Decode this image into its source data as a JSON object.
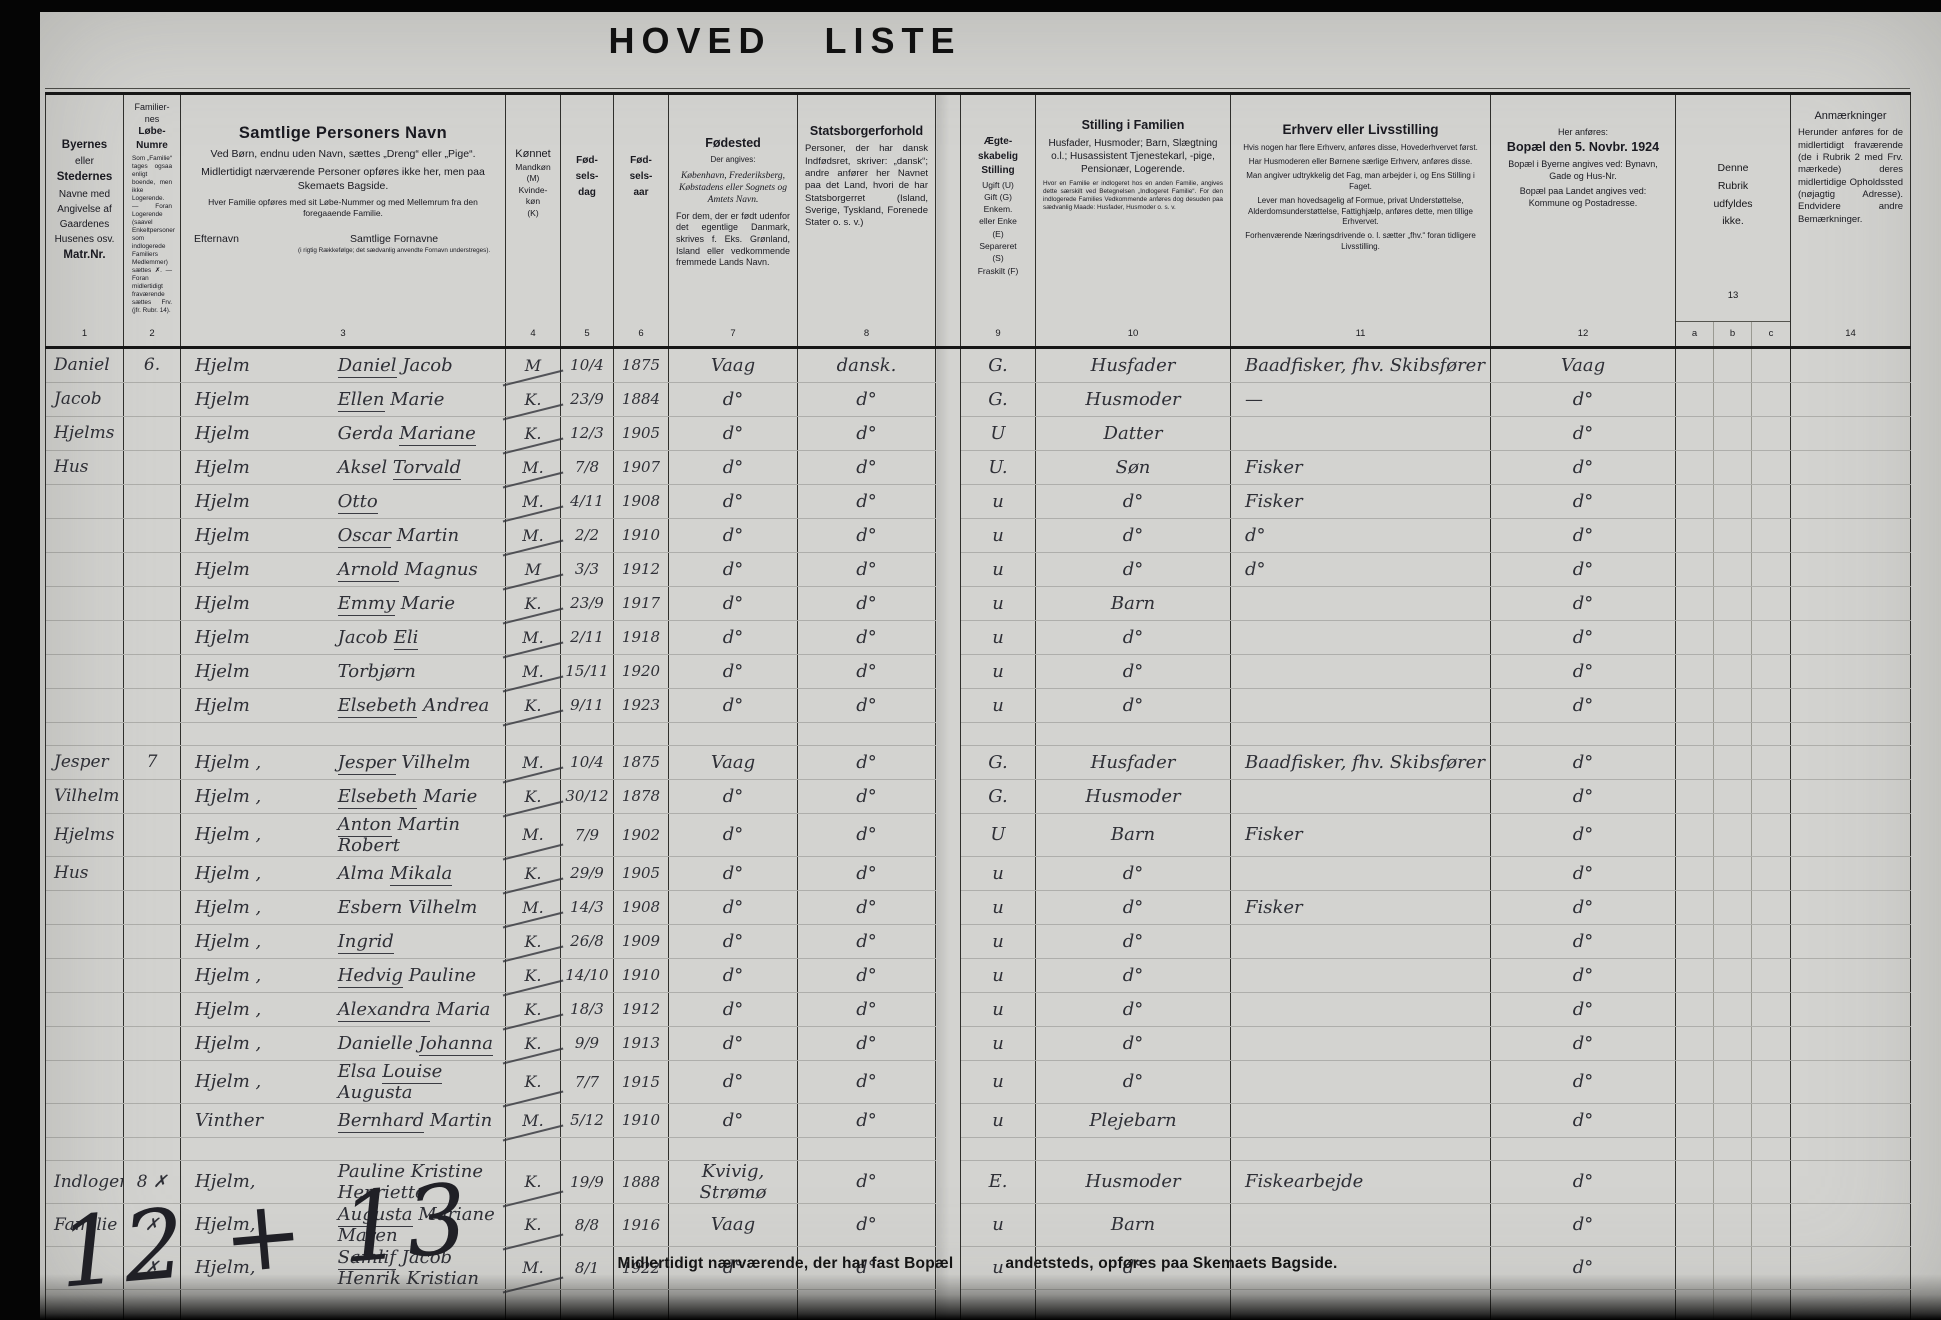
{
  "title": "HOVED LISTE",
  "bottom": {
    "note_left": "Midlertidigt nærværende, der har fast Bopæl",
    "note_right": "andetsteds, opføres paa Skemaets Bagside.",
    "handwriting": "12 + 13"
  },
  "colnums": {
    "n1": "1",
    "n2": "2",
    "n3": "3",
    "n4": "4",
    "n5": "5",
    "n6": "6",
    "n7": "7",
    "n8": "8",
    "n9": "9",
    "n10": "10",
    "n11": "11",
    "n12": "12",
    "n13": "13",
    "a": "a",
    "b": "b",
    "c": "c",
    "n14": "14"
  },
  "header": {
    "c1": {
      "l1": "Byernes",
      "l2": "eller",
      "l3": "Stedernes",
      "l4": "Navne med",
      "l5": "Angivelse af",
      "l6": "Gaardenes",
      "l7": "Husenes osv.",
      "l8": "Matr.Nr."
    },
    "c2": {
      "t1": "Familier-",
      "t2": "nes",
      "t3": "Løbe-",
      "t4": "Numre",
      "note": "Som „Familie“ tages ogsaa enligt boende, men ikke Logerende. — Foran Logerende (saavel Enkeltpersoner som indlogerede Familiers Medlemmer) sættes ✗. — Foran midlertidigt fraværende sættes Frv. (jfr. Rubr. 14)."
    },
    "c3": {
      "title": "Samtlige Personers Navn",
      "p1": "Ved Børn, endnu uden Navn, sættes „Dreng“ eller „Pige“.",
      "p2": "Midlertidigt nærværende Personer opføres ikke her, men paa Skemaets Bagside.",
      "p3": "Hver Familie opføres med sit Løbe-Nummer og med Mellemrum fra den foregaaende Familie.",
      "sub_left": "Efternavn",
      "sub_right": "Samtlige Fornavne",
      "sub_right_note": "(i rigtig Rækkefølge; det sædvanlig anvendte Fornavn understreges)."
    },
    "c4": {
      "title": "Kønnet",
      "l1": "Mandkøn",
      "l2": "(M)",
      "l3": "Kvinde-",
      "l4": "køn",
      "l5": "(K)"
    },
    "c5": {
      "l1": "Fød-",
      "l2": "sels-",
      "l3": "dag"
    },
    "c6": {
      "l1": "Fød-",
      "l2": "sels-",
      "l3": "aar"
    },
    "c7": {
      "title": "Fødested",
      "p1": "Der angives:",
      "p2": "København, Frederiksberg, Købstadens eller Sognets og Amtets Navn.",
      "p3": "For dem, der er født udenfor det egentlige Danmark, skrives f. Eks. Grønland, Island eller vedkommende fremmede Lands Navn."
    },
    "c8": {
      "title": "Statsborgerforhold",
      "p1": "Personer, der har dansk Indfødsret, skriver: „dansk“; andre anfører her Navnet paa det Land, hvori de har Statsborgerret (Island, Sverige, Tyskland, Forenede Stater o. s. v.)"
    },
    "c9": {
      "t1": "Ægte-",
      "t2": "skabelig",
      "t3": "Stilling",
      "l1": "Ugift (U)",
      "l2": "Gift (G)",
      "l3": "Enkem.",
      "l4": "eller Enke",
      "l5": "(E)",
      "l6": "Separeret",
      "l7": "(S)",
      "l8": "Fraskilt (F)"
    },
    "c10": {
      "title": "Stilling i Familien",
      "p1": "Husfader, Husmoder; Barn, Slægtning o.l.; Husassistent Tjenestekarl, -pige, Pensionær, Logerende.",
      "p2": "Hvor en Familie er indlogeret hos en anden Familie, angives dette særskilt ved Betegnelsen „Indlogeret Familie“. For den indlogerede Families Vedkommende anføres dog desuden paa sædvanlig Maade: Husfader, Husmoder o. s. v."
    },
    "c11": {
      "title": "Erhverv eller Livsstilling",
      "p1": "Hvis nogen har flere Erhverv, anføres disse, Hovederhvervet først.",
      "p2": "Har Husmoderen eller Børnene særlige Erhverv, anføres disse.",
      "p3": "Man angiver udtrykkelig det Fag, man arbejder i, og Ens Stilling i Faget.",
      "p4": "Lever man hovedsagelig af Formue, privat Understøttelse, Alderdomsunderstøttelse, Fattighjælp, anføres dette, men tillige Erhvervet.",
      "p5": "Forhenværende Næringsdrivende o. l. sætter „fhv.“ foran tidligere Livsstilling."
    },
    "c12": {
      "pre": "Her anføres:",
      "title": "Bopæl den 5. Novbr. 1924",
      "p1": "Bopæl i Byerne angives ved: Bynavn, Gade og Hus-Nr.",
      "p2": "Bopæl paa Landet angives ved: Kommune og Postadresse."
    },
    "c13": {
      "l1": "Denne",
      "l2": "Rubrik",
      "l3": "udfyldes",
      "l4": "ikke."
    },
    "c14": {
      "title": "Anmærkninger",
      "p1": "Herunder anføres for de midlertidigt fraværende (de i Rubrik 2 med Frv. mærkede) deres midlertidige Opholdssted (nøjagtig Adresse). Endvidere andre Bemærkninger."
    }
  },
  "families": [
    {
      "place_lines": [
        "Daniel",
        "Jacob",
        "Hjelms",
        "Hus"
      ],
      "rows": [
        {
          "num": "6.",
          "surname": "Hjelm",
          "given": "Daniel Jacob",
          "u": "Daniel",
          "sex": "M",
          "day": "10/4",
          "year": "1875",
          "birthplace": "Vaag",
          "citizen": "dansk.",
          "marital": "G.",
          "position": "Husfader",
          "occupation": "Baadfisker, fhv. Skibsfører",
          "residence": "Vaag"
        },
        {
          "num": "",
          "surname": "Hjelm",
          "given": "Ellen Marie",
          "u": "Ellen",
          "sex": "K.",
          "day": "23/9",
          "year": "1884",
          "birthplace": "d°",
          "citizen": "d°",
          "marital": "G.",
          "position": "Husmoder",
          "occupation": "—",
          "residence": "d°"
        },
        {
          "num": "",
          "surname": "Hjelm",
          "given": "Gerda Mariane",
          "u": "Mariane",
          "sex": "K.",
          "day": "12/3",
          "year": "1905",
          "birthplace": "d°",
          "citizen": "d°",
          "marital": "U",
          "position": "Datter",
          "occupation": "",
          "residence": "d°"
        },
        {
          "num": "",
          "surname": "Hjelm",
          "given": "Aksel Torvald",
          "u": "Torvald",
          "sex": "M.",
          "day": "7/8",
          "year": "1907",
          "birthplace": "d°",
          "citizen": "d°",
          "marital": "U.",
          "position": "Søn",
          "occupation": "Fisker",
          "residence": "d°"
        },
        {
          "num": "",
          "surname": "Hjelm",
          "given": "Otto",
          "u": "Otto",
          "sex": "M.",
          "day": "4/11",
          "year": "1908",
          "birthplace": "d°",
          "citizen": "d°",
          "marital": "u",
          "position": "d°",
          "occupation": "Fisker",
          "residence": "d°"
        },
        {
          "num": "",
          "surname": "Hjelm",
          "given": "Oscar Martin",
          "u": "Oscar",
          "sex": "M.",
          "day": "2/2",
          "year": "1910",
          "birthplace": "d°",
          "citizen": "d°",
          "marital": "u",
          "position": "d°",
          "occupation": "d°",
          "residence": "d°"
        },
        {
          "num": "",
          "surname": "Hjelm",
          "given": "Arnold Magnus",
          "u": "Arnold",
          "sex": "M",
          "day": "3/3",
          "year": "1912",
          "birthplace": "d°",
          "citizen": "d°",
          "marital": "u",
          "position": "d°",
          "occupation": "d°",
          "residence": "d°"
        },
        {
          "num": "",
          "surname": "Hjelm",
          "given": "Emmy Marie",
          "u": "Emmy",
          "sex": "K.",
          "day": "23/9",
          "year": "1917",
          "birthplace": "d°",
          "citizen": "d°",
          "marital": "u",
          "position": "Barn",
          "occupation": "",
          "residence": "d°"
        },
        {
          "num": "",
          "surname": "Hjelm",
          "given": "Jacob Eli",
          "u": "Eli",
          "sex": "M.",
          "day": "2/11",
          "year": "1918",
          "birthplace": "d°",
          "citizen": "d°",
          "marital": "u",
          "position": "d°",
          "occupation": "",
          "residence": "d°"
        },
        {
          "num": "",
          "surname": "Hjelm",
          "given": "Torbjørn",
          "u": "",
          "sex": "M.",
          "day": "15/11",
          "year": "1920",
          "birthplace": "d°",
          "citizen": "d°",
          "marital": "u",
          "position": "d°",
          "occupation": "",
          "residence": "d°"
        },
        {
          "num": "",
          "surname": "Hjelm",
          "given": "Elsebeth Andrea",
          "u": "Elsebeth",
          "sex": "K.",
          "day": "9/11",
          "year": "1923",
          "birthplace": "d°",
          "citizen": "d°",
          "marital": "u",
          "position": "d°",
          "occupation": "",
          "residence": "d°"
        }
      ]
    },
    {
      "place_lines": [
        "Jesper",
        "Vilhelm",
        "Hjelms",
        "Hus"
      ],
      "rows": [
        {
          "num": "7",
          "surname": "Hjelm ,",
          "given": "Jesper Vilhelm",
          "u": "Jesper",
          "sex": "M.",
          "day": "10/4",
          "year": "1875",
          "birthplace": "Vaag",
          "citizen": "d°",
          "marital": "G.",
          "position": "Husfader",
          "occupation": "Baadfisker, fhv. Skibsfører",
          "residence": "d°"
        },
        {
          "num": "",
          "surname": "Hjelm ,",
          "given": "Elsebeth Marie",
          "u": "Elsebeth",
          "sex": "K.",
          "day": "30/12",
          "year": "1878",
          "birthplace": "d°",
          "citizen": "d°",
          "marital": "G.",
          "position": "Husmoder",
          "occupation": "",
          "residence": "d°"
        },
        {
          "num": "",
          "surname": "Hjelm ,",
          "given": "Anton Martin Robert",
          "u": "Anton",
          "sex": "M.",
          "day": "7/9",
          "year": "1902",
          "birthplace": "d°",
          "citizen": "d°",
          "marital": "U",
          "position": "Barn",
          "occupation": "Fisker",
          "residence": "d°"
        },
        {
          "num": "",
          "surname": "Hjelm ,",
          "given": "Alma Mikala",
          "u": "Mikala",
          "sex": "K.",
          "day": "29/9",
          "year": "1905",
          "birthplace": "d°",
          "citizen": "d°",
          "marital": "u",
          "position": "d°",
          "occupation": "",
          "residence": "d°"
        },
        {
          "num": "",
          "surname": "Hjelm ,",
          "given": "Esbern Vilhelm",
          "u": "",
          "sex": "M.",
          "day": "14/3",
          "year": "1908",
          "birthplace": "d°",
          "citizen": "d°",
          "marital": "u",
          "position": "d°",
          "occupation": "Fisker",
          "residence": "d°"
        },
        {
          "num": "",
          "surname": "Hjelm ,",
          "given": "Ingrid",
          "u": "Ingrid",
          "sex": "K.",
          "day": "26/8",
          "year": "1909",
          "birthplace": "d°",
          "citizen": "d°",
          "marital": "u",
          "position": "d°",
          "occupation": "",
          "residence": "d°"
        },
        {
          "num": "",
          "surname": "Hjelm ,",
          "given": "Hedvig Pauline",
          "u": "Hedvig",
          "sex": "K.",
          "day": "14/10",
          "year": "1910",
          "birthplace": "d°",
          "citizen": "d°",
          "marital": "u",
          "position": "d°",
          "occupation": "",
          "residence": "d°"
        },
        {
          "num": "",
          "surname": "Hjelm ,",
          "given": "Alexandra Maria",
          "u": "Alexandra",
          "sex": "K.",
          "day": "18/3",
          "year": "1912",
          "birthplace": "d°",
          "citizen": "d°",
          "marital": "u",
          "position": "d°",
          "occupation": "",
          "residence": "d°"
        },
        {
          "num": "",
          "surname": "Hjelm ,",
          "given": "Danielle Johanna",
          "u": "Johanna",
          "sex": "K.",
          "day": "9/9",
          "year": "1913",
          "birthplace": "d°",
          "citizen": "d°",
          "marital": "u",
          "position": "d°",
          "occupation": "",
          "residence": "d°"
        },
        {
          "num": "",
          "surname": "Hjelm ,",
          "given": "Elsa Louise Augusta",
          "u": "Louise",
          "sex": "K.",
          "day": "7/7",
          "year": "1915",
          "birthplace": "d°",
          "citizen": "d°",
          "marital": "u",
          "position": "d°",
          "occupation": "",
          "residence": "d°"
        },
        {
          "num": "",
          "surname": "Vinther",
          "given": "Bernhard Martin",
          "u": "Bernhard",
          "sex": "M.",
          "day": "5/12",
          "year": "1910",
          "birthplace": "d°",
          "citizen": "d°",
          "marital": "u",
          "position": "Plejebarn",
          "occupation": "",
          "residence": "d°"
        }
      ]
    },
    {
      "place_lines": [
        "Indlogeret",
        "Familie"
      ],
      "rows": [
        {
          "num": "8 ✗",
          "surname": "Hjelm,",
          "given": "Pauline Kristine Henriette",
          "u": "Henriette",
          "sex": "K.",
          "day": "19/9",
          "year": "1888",
          "birthplace": "Kvivig,  Strømø",
          "citizen": "d°",
          "marital": "E.",
          "position": "Husmoder",
          "occupation": "Fiskearbejde",
          "residence": "d°"
        },
        {
          "num": "✗",
          "surname": "Hjelm,",
          "given": "Augusta Mariane Maren",
          "u": "Augusta",
          "sex": "K.",
          "day": "8/8",
          "year": "1916",
          "birthplace": "Vaag",
          "citizen": "d°",
          "marital": "u",
          "position": "Barn",
          "occupation": "",
          "residence": "d°"
        },
        {
          "num": "✗",
          "surname": "Hjelm,",
          "given": "Samlif Jacob Henrik Kristian",
          "u": "Samlif",
          "sex": "M.",
          "day": "8/1",
          "year": "1922",
          "birthplace": "d°",
          "citizen": "d°",
          "marital": "u",
          "position": "d°",
          "occupation": "",
          "residence": "d°"
        }
      ]
    }
  ]
}
